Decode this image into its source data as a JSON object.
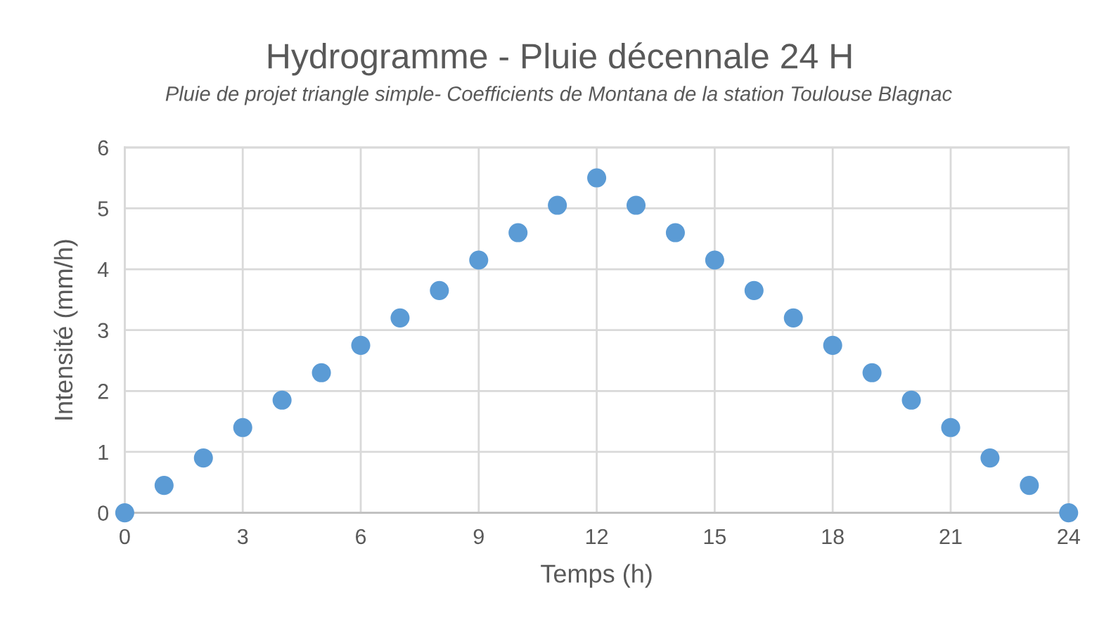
{
  "chart_data": {
    "type": "scatter",
    "title": "Hydrogramme - Pluie décennale 24 H",
    "subtitle": "Pluie de projet triangle simple- Coefficients de Montana de la station Toulouse Blagnac",
    "xlabel": "Temps (h)",
    "ylabel": "Intensité (mm/h)",
    "x": [
      0,
      1,
      2,
      3,
      4,
      5,
      6,
      7,
      8,
      9,
      10,
      11,
      12,
      13,
      14,
      15,
      16,
      17,
      18,
      19,
      20,
      21,
      22,
      23,
      24
    ],
    "values": [
      0,
      0.45,
      0.9,
      1.4,
      1.85,
      2.3,
      2.75,
      3.2,
      3.65,
      4.15,
      4.6,
      5.05,
      5.5,
      5.05,
      4.6,
      4.15,
      3.65,
      3.2,
      2.75,
      2.3,
      1.85,
      1.4,
      0.9,
      0.45,
      0
    ],
    "color": "#5b9bd5",
    "marker": "circle",
    "xlim": [
      0,
      24
    ],
    "xticks": [
      0,
      3,
      6,
      9,
      12,
      15,
      18,
      21,
      24
    ],
    "ylim": [
      0,
      6
    ],
    "yticks": [
      0,
      1,
      2,
      3,
      4,
      5,
      6
    ],
    "grid": true
  }
}
